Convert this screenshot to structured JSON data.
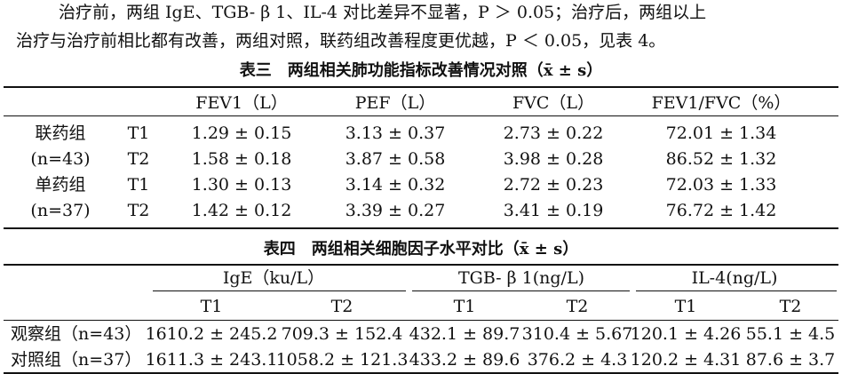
{
  "paragraph": {
    "line1": "治疗前，两组 IgE、TGB- β 1、IL-4 对比差异不显著，P ＞ 0.05；治疗后，两组以上",
    "line2": "治疗与治疗前相比都有改善，两组对照，联药组改善程度更优越，P ＜ 0.05，见表 4。"
  },
  "table3": {
    "caption": "表三　两组相关肺功能指标改善情况对照（x̄ ± s）",
    "headers": [
      "FEV1（L）",
      "PEF（L）",
      "FVC（L）",
      "FEV1/FVC（%）"
    ],
    "groups": [
      {
        "name": "联药组",
        "n": "(n=43)",
        "rows": [
          {
            "time": "T1",
            "values": [
              "1.29 ± 0.15",
              "3.13 ± 0.37",
              "2.73 ± 0.22",
              "72.01 ± 1.34"
            ]
          },
          {
            "time": "T2",
            "values": [
              "1.58 ± 0.18",
              "3.87 ± 0.58",
              "3.98 ± 0.28",
              "86.52 ± 1.32"
            ]
          }
        ]
      },
      {
        "name": "单药组",
        "n": "(n=37)",
        "rows": [
          {
            "time": "T1",
            "values": [
              "1.30 ± 0.13",
              "3.14 ± 0.32",
              "2.72 ± 0.23",
              "72.03 ± 1.33"
            ]
          },
          {
            "time": "T2",
            "values": [
              "1.42 ± 0.12",
              "3.39 ± 0.27",
              "3.41 ± 0.19",
              "76.72 ± 1.42"
            ]
          }
        ]
      }
    ]
  },
  "table4": {
    "caption": "表四　两组相关细胞因子水平对比（x̄ ± s）",
    "headers": [
      "IgE（ku/L）",
      "TGB- β 1(ng/L)",
      "IL-4(ng/L)"
    ],
    "subheaders": [
      "T1",
      "T2",
      "T1",
      "T2",
      "T1",
      "T2"
    ],
    "rows": [
      {
        "label": "观察组（n=43）",
        "values": [
          "1610.2 ± 245.2",
          "709.3 ± 152.4",
          "432.1 ± 89.7",
          "310.4 ± 5.67",
          "120.1 ± 4.26",
          "55.1 ± 4.5"
        ]
      },
      {
        "label": "对照组（n=37）",
        "values": [
          "1611.3 ± 243.1",
          "1058.2 ± 121.3",
          "433.2 ± 89.6",
          "376.2 ± 4.3",
          "120.2 ± 4.31",
          "87.6 ± 3.7"
        ]
      }
    ]
  }
}
